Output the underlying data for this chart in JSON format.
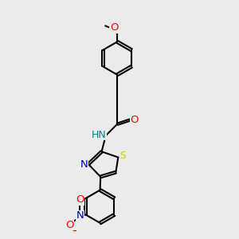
{
  "bg_color": "#ebebeb",
  "bond_color": "#000000",
  "O_color": "#ff0000",
  "N_color": "#0000cc",
  "S_color": "#cccc00",
  "HN_color": "#008888",
  "lw": 1.5,
  "dbo": 0.055,
  "fs": 9.5,
  "xlim": [
    0,
    10
  ],
  "ylim": [
    0,
    10
  ]
}
